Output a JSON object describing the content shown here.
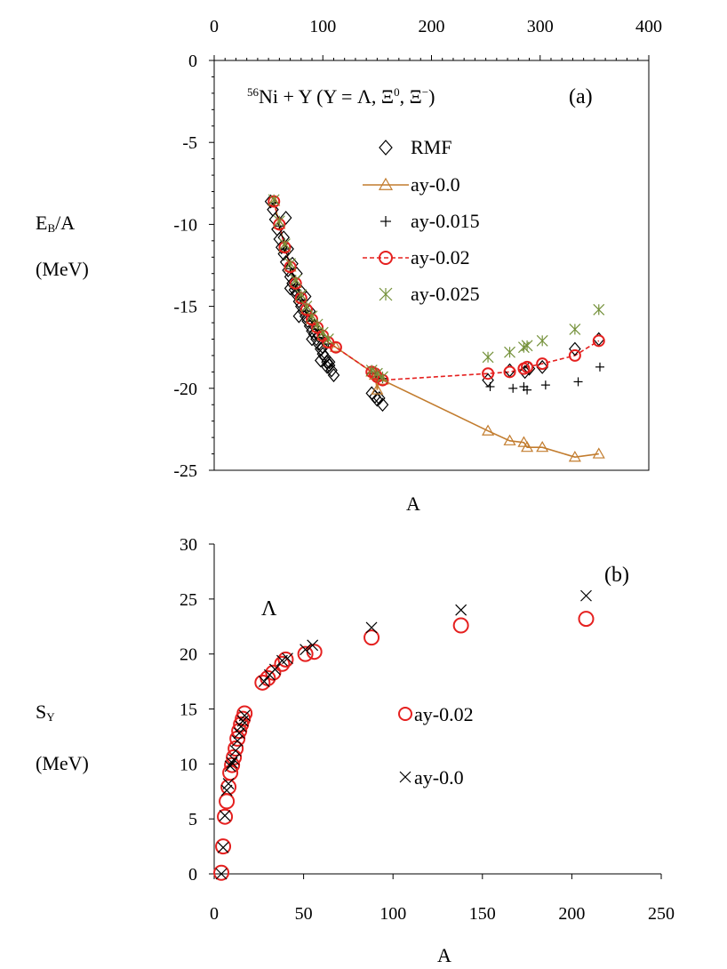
{
  "chart_data": [
    {
      "panel_label": "(a)",
      "type": "scatter",
      "title_parts": [
        "56",
        "Ni + Y (Y = Λ, Ξ",
        "0",
        ", Ξ",
        "−",
        ")"
      ],
      "title": "56Ni + Y (Y = Λ, Ξ0, Ξ−)",
      "xlabel": "A",
      "ylabel_parts": [
        "E",
        "B",
        "/A"
      ],
      "ylabel": "EB/A",
      "yunit": "(MeV)",
      "xlim": [
        0,
        400
      ],
      "ylim": [
        -25,
        0
      ],
      "x_ticks": [
        "0",
        "100",
        "200",
        "300",
        "400"
      ],
      "y_ticks": [
        "0",
        "-5",
        "-10",
        "-15",
        "-20",
        "-25"
      ],
      "x_axis_position": "top",
      "grid": false,
      "legend_position": "upper-middle",
      "series": [
        {
          "name": "RMF",
          "marker": "diamond",
          "color": "#000000",
          "line": "none",
          "points": [
            [
              52,
              -8.6
            ],
            [
              54,
              -9.1
            ],
            [
              56,
              -9.7
            ],
            [
              58,
              -10.3
            ],
            [
              60,
              -10.9
            ],
            [
              62,
              -11.4
            ],
            [
              64,
              -11.8
            ],
            [
              66,
              -12.3
            ],
            [
              68,
              -12.8
            ],
            [
              70,
              -13.2
            ],
            [
              72,
              -13.6
            ],
            [
              74,
              -14.0
            ],
            [
              76,
              -14.3
            ],
            [
              78,
              -14.7
            ],
            [
              80,
              -15.0
            ],
            [
              82,
              -15.3
            ],
            [
              84,
              -15.6
            ],
            [
              86,
              -15.9
            ],
            [
              88,
              -16.2
            ],
            [
              90,
              -16.5
            ],
            [
              92,
              -16.7
            ],
            [
              94,
              -17.0
            ],
            [
              96,
              -17.3
            ],
            [
              98,
              -17.6
            ],
            [
              100,
              -17.9
            ],
            [
              102,
              -18.1
            ],
            [
              104,
              -18.4
            ],
            [
              106,
              -18.6
            ],
            [
              108,
              -18.9
            ],
            [
              110,
              -19.2
            ],
            [
              66,
              -9.6
            ],
            [
              64,
              -10.8
            ],
            [
              68,
              -11.5
            ],
            [
              72,
              -12.4
            ],
            [
              76,
              -13.0
            ],
            [
              70,
              -13.9
            ],
            [
              80,
              -14.1
            ],
            [
              84,
              -14.4
            ],
            [
              78,
              -15.6
            ],
            [
              88,
              -15.3
            ],
            [
              92,
              -16.2
            ],
            [
              90,
              -17.0
            ],
            [
              96,
              -16.8
            ],
            [
              100,
              -17.5
            ],
            [
              98,
              -18.3
            ],
            [
              104,
              -18.7
            ],
            [
              106,
              -18.4
            ],
            [
              145,
              -20.3
            ],
            [
              148,
              -20.5
            ],
            [
              150,
              -20.7
            ],
            [
              152,
              -20.6
            ],
            [
              155,
              -21.0
            ],
            [
              252,
              -19.5
            ],
            [
              272,
              -18.9
            ],
            [
              286,
              -19.0
            ],
            [
              290,
              -18.8
            ],
            [
              302,
              -18.7
            ],
            [
              332,
              -17.6
            ],
            [
              354,
              -17.0
            ]
          ]
        },
        {
          "name": "ay-0.0",
          "marker": "triangle",
          "color": "#C27C2E",
          "line": "solid",
          "points": [
            [
              55,
              -8.6
            ],
            [
              60,
              -10.0
            ],
            [
              65,
              -11.4
            ],
            [
              70,
              -12.6
            ],
            [
              75,
              -13.6
            ],
            [
              80,
              -14.5
            ],
            [
              85,
              -15.2
            ],
            [
              90,
              -15.8
            ],
            [
              95,
              -16.3
            ],
            [
              100,
              -16.8
            ],
            [
              105,
              -17.2
            ],
            [
              112,
              -17.5
            ],
            [
              145,
              -19.0
            ],
            [
              148,
              -19.2
            ],
            [
              150,
              -20.1
            ],
            [
              152,
              -19.3
            ],
            [
              155,
              -19.5
            ],
            [
              252,
              -22.6
            ],
            [
              272,
              -23.2
            ],
            [
              285,
              -23.3
            ],
            [
              288,
              -23.6
            ],
            [
              302,
              -23.6
            ],
            [
              332,
              -24.2
            ],
            [
              354,
              -24.0
            ]
          ]
        },
        {
          "name": "ay-0.015",
          "marker": "plus",
          "color": "#000000",
          "line": "none",
          "points": [
            [
              55,
              -8.7
            ],
            [
              60,
              -10.1
            ],
            [
              65,
              -11.5
            ],
            [
              70,
              -12.7
            ],
            [
              75,
              -13.7
            ],
            [
              80,
              -14.6
            ],
            [
              85,
              -15.3
            ],
            [
              90,
              -15.9
            ],
            [
              95,
              -16.4
            ],
            [
              100,
              -16.9
            ],
            [
              105,
              -17.3
            ],
            [
              145,
              -19.1
            ],
            [
              150,
              -19.3
            ],
            [
              155,
              -19.4
            ],
            [
              254,
              -19.9
            ],
            [
              275,
              -20.0
            ],
            [
              285,
              -19.9
            ],
            [
              288,
              -20.1
            ],
            [
              305,
              -19.8
            ],
            [
              335,
              -19.6
            ],
            [
              355,
              -18.7
            ]
          ]
        },
        {
          "name": "ay-0.02",
          "marker": "circle",
          "color": "#E5201F",
          "line": "dashed",
          "points": [
            [
              55,
              -8.6
            ],
            [
              60,
              -10.0
            ],
            [
              65,
              -11.4
            ],
            [
              70,
              -12.6
            ],
            [
              75,
              -13.6
            ],
            [
              80,
              -14.5
            ],
            [
              85,
              -15.2
            ],
            [
              90,
              -15.8
            ],
            [
              95,
              -16.3
            ],
            [
              100,
              -16.8
            ],
            [
              105,
              -17.2
            ],
            [
              112,
              -17.5
            ],
            [
              145,
              -19.0
            ],
            [
              148,
              -19.1
            ],
            [
              150,
              -19.3
            ],
            [
              155,
              -19.5
            ],
            [
              252,
              -19.1
            ],
            [
              272,
              -19.0
            ],
            [
              285,
              -18.8
            ],
            [
              288,
              -18.7
            ],
            [
              302,
              -18.5
            ],
            [
              332,
              -18.0
            ],
            [
              354,
              -17.1
            ]
          ]
        },
        {
          "name": "ay-0.025",
          "marker": "asterisk",
          "color": "#74913A",
          "line": "none",
          "points": [
            [
              55,
              -8.5
            ],
            [
              60,
              -9.8
            ],
            [
              65,
              -11.2
            ],
            [
              70,
              -12.4
            ],
            [
              75,
              -13.4
            ],
            [
              80,
              -14.3
            ],
            [
              85,
              -15.0
            ],
            [
              90,
              -15.6
            ],
            [
              95,
              -16.1
            ],
            [
              100,
              -16.6
            ],
            [
              105,
              -17.0
            ],
            [
              145,
              -18.9
            ],
            [
              150,
              -19.1
            ],
            [
              155,
              -19.3
            ],
            [
              252,
              -18.1
            ],
            [
              272,
              -17.8
            ],
            [
              285,
              -17.5
            ],
            [
              288,
              -17.4
            ],
            [
              302,
              -17.1
            ],
            [
              332,
              -16.4
            ],
            [
              354,
              -15.2
            ]
          ]
        }
      ]
    },
    {
      "panel_label": "(b)",
      "type": "scatter",
      "xlabel": "A",
      "ylabel_parts": [
        "S",
        "Y"
      ],
      "ylabel": "SY",
      "yunit": "(MeV)",
      "annotation": "Λ",
      "xlim": [
        0,
        250
      ],
      "ylim": [
        0,
        30
      ],
      "x_ticks": [
        "0",
        "50",
        "100",
        "150",
        "200",
        "250"
      ],
      "y_ticks": [
        "0",
        "5",
        "10",
        "15",
        "20",
        "25",
        "30"
      ],
      "grid": false,
      "legend_position": "center-right",
      "series": [
        {
          "name": "ay-0.02",
          "marker": "circle",
          "color": "#E5201F",
          "points": [
            [
              4,
              0.1
            ],
            [
              5,
              2.5
            ],
            [
              6,
              5.2
            ],
            [
              7,
              6.6
            ],
            [
              8,
              7.9
            ],
            [
              9,
              9.2
            ],
            [
              10,
              9.9
            ],
            [
              11,
              10.6
            ],
            [
              12,
              11.4
            ],
            [
              13,
              12.3
            ],
            [
              14,
              13.0
            ],
            [
              15,
              13.6
            ],
            [
              16,
              14.1
            ],
            [
              17,
              14.6
            ],
            [
              27,
              17.4
            ],
            [
              30,
              17.8
            ],
            [
              33,
              18.3
            ],
            [
              38,
              19.1
            ],
            [
              40,
              19.5
            ],
            [
              51,
              20.0
            ],
            [
              56,
              20.2
            ],
            [
              88,
              21.5
            ],
            [
              138,
              22.6
            ],
            [
              208,
              23.2
            ]
          ]
        },
        {
          "name": "ay-0.0",
          "marker": "cross",
          "color": "#000000",
          "points": [
            [
              4,
              0.0
            ],
            [
              5,
              2.4
            ],
            [
              6,
              5.3
            ],
            [
              7,
              7.6
            ],
            [
              8,
              8.2
            ],
            [
              9,
              9.8
            ],
            [
              10,
              10.1
            ],
            [
              11,
              10.4
            ],
            [
              12,
              11.2
            ],
            [
              13,
              12.1
            ],
            [
              14,
              12.8
            ],
            [
              15,
              13.4
            ],
            [
              16,
              13.9
            ],
            [
              17,
              14.4
            ],
            [
              28,
              17.5
            ],
            [
              31,
              18.1
            ],
            [
              34,
              18.6
            ],
            [
              38,
              19.4
            ],
            [
              41,
              19.6
            ],
            [
              51,
              20.4
            ],
            [
              55,
              20.8
            ],
            [
              88,
              22.4
            ],
            [
              138,
              24.0
            ],
            [
              208,
              25.3
            ]
          ]
        }
      ],
      "legend_entries": [
        {
          "name": "ay-0.02",
          "marker": "circle",
          "color": "#E5201F"
        },
        {
          "name": "ay-0.0",
          "marker": "cross",
          "color": "#000000"
        }
      ]
    }
  ]
}
